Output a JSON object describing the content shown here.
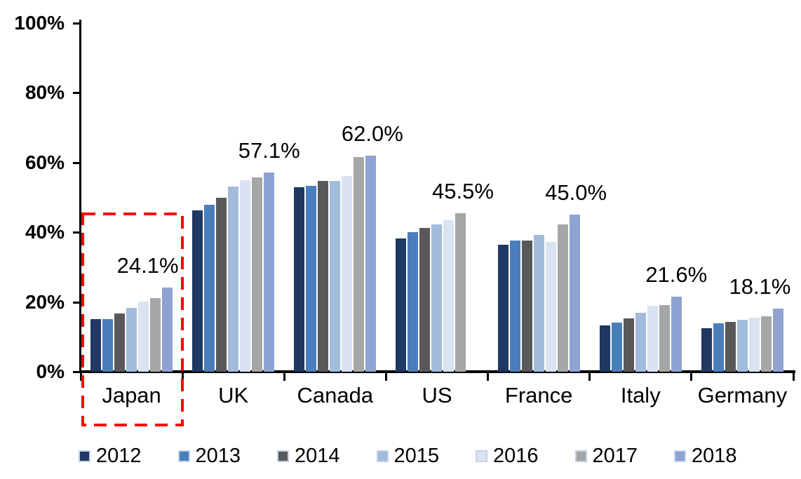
{
  "chart_data": {
    "type": "bar",
    "title": "",
    "categories": [
      "Japan",
      "UK",
      "Canada",
      "US",
      "France",
      "Italy",
      "Germany"
    ],
    "series": [
      {
        "name": "2012",
        "color": "#1F3864",
        "values": [
          15.0,
          46.3,
          52.9,
          38.2,
          36.4,
          13.2,
          12.5
        ]
      },
      {
        "name": "2013",
        "color": "#4A7EBB",
        "values": [
          15.1,
          47.9,
          53.4,
          40.0,
          37.6,
          14.1,
          13.9
        ]
      },
      {
        "name": "2014",
        "color": "#595959",
        "values": [
          16.8,
          50.0,
          54.8,
          41.2,
          37.6,
          15.3,
          14.3
        ]
      },
      {
        "name": "2015",
        "color": "#A3BBDC",
        "values": [
          18.3,
          53.2,
          54.7,
          42.2,
          39.3,
          16.9,
          14.9
        ]
      },
      {
        "name": "2016",
        "color": "#DAE3F2",
        "values": [
          20.1,
          54.9,
          56.2,
          43.5,
          37.3,
          19.0,
          15.5
        ]
      },
      {
        "name": "2017",
        "color": "#A6A6A6",
        "values": [
          21.1,
          55.8,
          61.6,
          45.5,
          42.3,
          19.2,
          15.9
        ]
      },
      {
        "name": "2018",
        "color": "#8FA3D2",
        "values": [
          24.1,
          57.1,
          62.0,
          null,
          45.0,
          21.6,
          18.1
        ]
      }
    ],
    "value_labels": [
      {
        "text": "24.1%",
        "dx": -28
      },
      {
        "text": "57.1%",
        "dx": 0
      },
      {
        "text": "62.0%",
        "dx": 2
      },
      {
        "text": "45.5%",
        "dx": 3
      },
      {
        "text": "45.0%",
        "dx": 2
      },
      {
        "text": "21.6%",
        "dx": 0
      },
      {
        "text": "18.1%",
        "dx": -26
      }
    ],
    "y_axis": {
      "min": 0,
      "max": 100,
      "tick_step": 20,
      "tick_labels": [
        "0%",
        "20%",
        "40%",
        "60%",
        "80%",
        "100%"
      ]
    },
    "x_axis": {
      "label": ""
    },
    "grid": false,
    "legend_position": "bottom",
    "highlight": {
      "category": "Japan",
      "style": "dashed-box",
      "color": "#FF0000"
    }
  },
  "colors": {
    "axis": "#000000",
    "background": "#FFFFFF",
    "highlight_box": "#FF0000"
  }
}
